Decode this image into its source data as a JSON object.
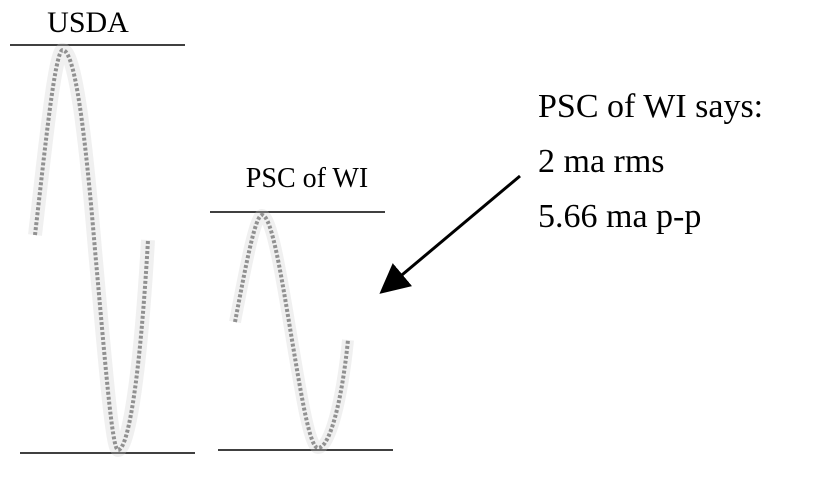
{
  "labels": {
    "usda": "USDA",
    "psc": "PSC of WI"
  },
  "note": {
    "lines": [
      "PSC of WI says:",
      "2 ma rms",
      "5.66 ma p-p"
    ]
  }
}
